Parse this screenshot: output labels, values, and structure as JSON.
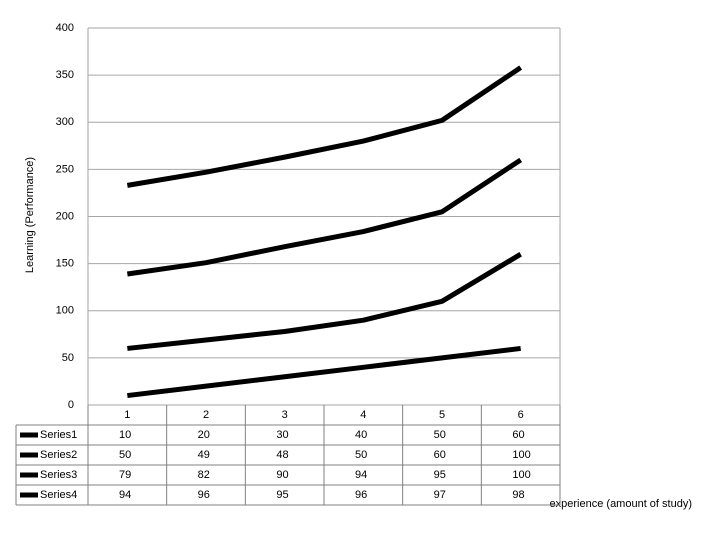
{
  "chart_data": {
    "type": "line",
    "stacked": true,
    "y_label": "Learning (Performance)",
    "x_label": "experience (amount of study)",
    "categories": [
      "1",
      "2",
      "3",
      "4",
      "5",
      "6"
    ],
    "series": [
      {
        "name": "Series1",
        "color": "#000000",
        "values": [
          10,
          20,
          30,
          40,
          50,
          60
        ]
      },
      {
        "name": "Series2",
        "color": "#000000",
        "values": [
          50,
          49,
          48,
          50,
          60,
          100
        ]
      },
      {
        "name": "Series3",
        "color": "#000000",
        "values": [
          79,
          82,
          90,
          94,
          95,
          100
        ]
      },
      {
        "name": "Series4",
        "color": "#000000",
        "values": [
          94,
          96,
          95,
          96,
          97,
          98
        ]
      }
    ],
    "ylim": [
      0,
      400
    ],
    "yticks": [
      0,
      50,
      100,
      150,
      200,
      250,
      300,
      350,
      400
    ],
    "grid": true,
    "data_table": true
  }
}
